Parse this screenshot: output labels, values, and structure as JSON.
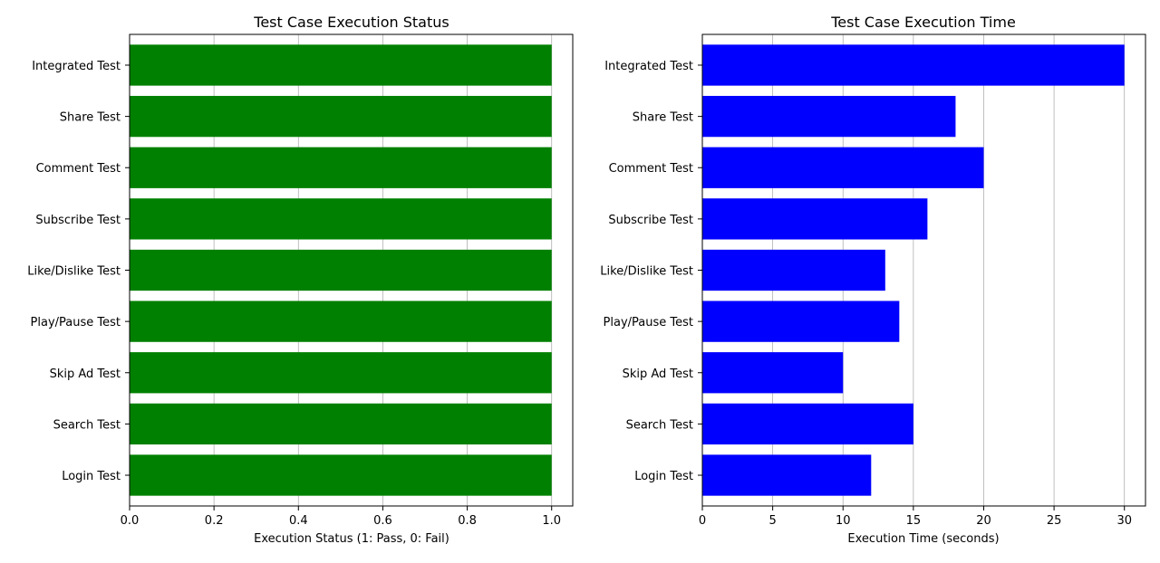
{
  "chart_data": [
    {
      "type": "bar",
      "orientation": "horizontal",
      "title": "Test Case Execution Status",
      "xlabel": "Execution Status (1: Pass, 0: Fail)",
      "ylabel": "",
      "categories": [
        "Login Test",
        "Search Test",
        "Skip Ad Test",
        "Play/Pause Test",
        "Like/Dislike Test",
        "Subscribe Test",
        "Comment Test",
        "Share Test",
        "Integrated Test"
      ],
      "values": [
        1,
        1,
        1,
        1,
        1,
        1,
        1,
        1,
        1
      ],
      "xlim": [
        0,
        1.05
      ],
      "xticks": [
        "0.0",
        "0.2",
        "0.4",
        "0.6",
        "0.8",
        "1.0"
      ],
      "xtick_values": [
        0,
        0.2,
        0.4,
        0.6,
        0.8,
        1.0
      ],
      "grid": "x",
      "color": "#008000"
    },
    {
      "type": "bar",
      "orientation": "horizontal",
      "title": "Test Case Execution Time",
      "xlabel": "Execution Time (seconds)",
      "ylabel": "",
      "categories": [
        "Login Test",
        "Search Test",
        "Skip Ad Test",
        "Play/Pause Test",
        "Like/Dislike Test",
        "Subscribe Test",
        "Comment Test",
        "Share Test",
        "Integrated Test"
      ],
      "values": [
        12,
        15,
        10,
        14,
        13,
        16,
        20,
        18,
        30
      ],
      "xlim": [
        0,
        31.5
      ],
      "xticks": [
        "0",
        "5",
        "10",
        "15",
        "20",
        "25",
        "30"
      ],
      "xtick_values": [
        0,
        5,
        10,
        15,
        20,
        25,
        30
      ],
      "grid": "x",
      "color": "#0000ff"
    }
  ]
}
